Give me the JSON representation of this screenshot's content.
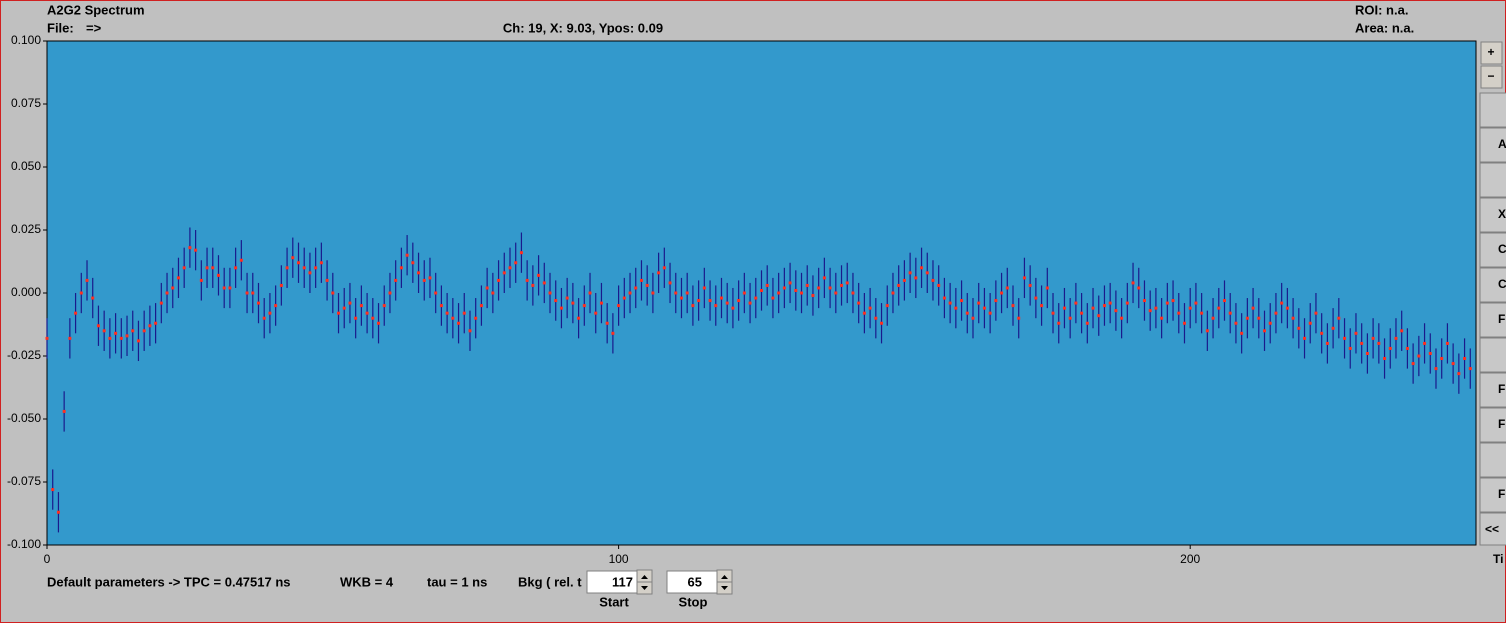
{
  "header": {
    "title": "A2G2 Spectrum",
    "file_label": "File:",
    "file_arrow": "=>",
    "cursor": "Ch: 19, X: 9.03, Ypos: 0.09",
    "roi": "ROI: n.a.",
    "area": "Area: n.a."
  },
  "side": {
    "plus": "+",
    "minus": "−",
    "buttons": [
      "A",
      "X",
      "C",
      "C",
      "F",
      "F",
      "F",
      "F",
      "<<"
    ]
  },
  "footer": {
    "params": "Default parameters  ->  TPC = 0.47517 ns",
    "wkb": "WKB = 4",
    "tau": "tau = 1 ns",
    "bkg": "Bkg ( rel. t",
    "start_value": "117",
    "stop_value": "65",
    "start_label": "Start",
    "stop_label": "Stop"
  },
  "chart_data": {
    "type": "scatter",
    "x_label": "Ti",
    "color": "#ff3020",
    "error_color": "#1a1a8c",
    "background": "#3399cc",
    "error": 0.008,
    "xlim": [
      0,
      250
    ],
    "xticks": [
      0,
      100,
      200
    ],
    "ylim": [
      -0.1,
      0.1
    ],
    "yticks": [
      {
        "value": 0.1,
        "label": "0.100"
      },
      {
        "value": 0.075,
        "label": "0.075"
      },
      {
        "value": 0.05,
        "label": "0.050"
      },
      {
        "value": 0.025,
        "label": "0.025"
      },
      {
        "value": 0,
        "label": "0.000"
      },
      {
        "value": -0.025,
        "label": "-0.025"
      },
      {
        "value": -0.05,
        "label": "-0.050"
      },
      {
        "value": -0.075,
        "label": "-0.075"
      },
      {
        "value": -0.1,
        "label": "-0.100"
      }
    ],
    "x": [
      0,
      1,
      2,
      3,
      4,
      5,
      6,
      7,
      8,
      9,
      10,
      11,
      12,
      13,
      14,
      15,
      16,
      17,
      18,
      19,
      20,
      21,
      22,
      23,
      24,
      25,
      26,
      27,
      28,
      29,
      30,
      31,
      32,
      33,
      34,
      35,
      36,
      37,
      38,
      39,
      40,
      41,
      42,
      43,
      44,
      45,
      46,
      47,
      48,
      49,
      50,
      51,
      52,
      53,
      54,
      55,
      56,
      57,
      58,
      59,
      60,
      61,
      62,
      63,
      64,
      65,
      66,
      67,
      68,
      69,
      70,
      71,
      72,
      73,
      74,
      75,
      76,
      77,
      78,
      79,
      80,
      81,
      82,
      83,
      84,
      85,
      86,
      87,
      88,
      89,
      90,
      91,
      92,
      93,
      94,
      95,
      96,
      97,
      98,
      99,
      100,
      101,
      102,
      103,
      104,
      105,
      106,
      107,
      108,
      109,
      110,
      111,
      112,
      113,
      114,
      115,
      116,
      117,
      118,
      119,
      120,
      121,
      122,
      123,
      124,
      125,
      126,
      127,
      128,
      129,
      130,
      131,
      132,
      133,
      134,
      135,
      136,
      137,
      138,
      139,
      140,
      141,
      142,
      143,
      144,
      145,
      146,
      147,
      148,
      149,
      150,
      151,
      152,
      153,
      154,
      155,
      156,
      157,
      158,
      159,
      160,
      161,
      162,
      163,
      164,
      165,
      166,
      167,
      168,
      169,
      170,
      171,
      172,
      173,
      174,
      175,
      176,
      177,
      178,
      179,
      180,
      181,
      182,
      183,
      184,
      185,
      186,
      187,
      188,
      189,
      190,
      191,
      192,
      193,
      194,
      195,
      196,
      197,
      198,
      199,
      200,
      201,
      202,
      203,
      204,
      205,
      206,
      207,
      208,
      209,
      210,
      211,
      212,
      213,
      214,
      215,
      216,
      217,
      218,
      219,
      220,
      221,
      222,
      223,
      224,
      225,
      226,
      227,
      228,
      229,
      230,
      231,
      232,
      233,
      234,
      235,
      236,
      237,
      238,
      239,
      240,
      241,
      242,
      243,
      244,
      245,
      246,
      247,
      248,
      249
    ],
    "values": [
      -0.018,
      -0.078,
      -0.087,
      -0.047,
      -0.018,
      -0.008,
      0,
      0.005,
      -0.002,
      -0.013,
      -0.015,
      -0.018,
      -0.016,
      -0.018,
      -0.017,
      -0.015,
      -0.019,
      -0.015,
      -0.013,
      -0.012,
      -0.004,
      0,
      0.002,
      0.006,
      0.01,
      0.018,
      0.017,
      0.005,
      0.01,
      0.01,
      0.007,
      0.002,
      0.002,
      0.01,
      0.013,
      0,
      0,
      -0.004,
      -0.01,
      -0.008,
      -0.005,
      0.003,
      0.01,
      0.014,
      0.012,
      0.01,
      0.008,
      0.01,
      0.012,
      0.005,
      0,
      -0.008,
      -0.006,
      -0.004,
      -0.01,
      -0.005,
      -0.008,
      -0.01,
      -0.012,
      -0.005,
      0,
      0.005,
      0.01,
      0.015,
      0.012,
      0.008,
      0.005,
      0.006,
      0,
      -0.005,
      -0.008,
      -0.01,
      -0.012,
      -0.008,
      -0.015,
      -0.01,
      -0.005,
      0.002,
      0,
      0.005,
      0.008,
      0.01,
      0.012,
      0.016,
      0.005,
      0.003,
      0.007,
      0.004,
      0,
      -0.003,
      -0.006,
      -0.002,
      -0.004,
      -0.01,
      -0.005,
      0,
      -0.008,
      -0.004,
      -0.012,
      -0.016,
      -0.005,
      -0.002,
      0,
      0.002,
      0.005,
      0.003,
      0,
      0.008,
      0.01,
      0.004,
      0,
      -0.002,
      0,
      -0.005,
      -0.003,
      0.002,
      -0.003,
      -0.005,
      -0.002,
      -0.004,
      -0.006,
      -0.003,
      0,
      -0.004,
      -0.002,
      0.001,
      0.003,
      -0.002,
      0,
      0.002,
      0.004,
      0.001,
      0,
      0.003,
      -0.001,
      0.002,
      0.006,
      0.002,
      0,
      0.003,
      0.004,
      0,
      -0.004,
      -0.008,
      -0.006,
      -0.01,
      -0.012,
      -0.005,
      0,
      0.003,
      0.005,
      0.008,
      0.006,
      0.01,
      0.008,
      0.005,
      0.003,
      -0.002,
      -0.004,
      -0.006,
      -0.003,
      -0.008,
      -0.01,
      -0.004,
      -0.006,
      -0.008,
      -0.003,
      0,
      0.002,
      -0.005,
      -0.01,
      0.006,
      0.003,
      -0.002,
      -0.005,
      0.002,
      -0.008,
      -0.012,
      -0.006,
      -0.01,
      -0.004,
      -0.008,
      -0.012,
      -0.006,
      -0.009,
      -0.005,
      -0.004,
      -0.007,
      -0.01,
      -0.004,
      0.004,
      0.002,
      -0.003,
      -0.007,
      -0.006,
      -0.01,
      -0.004,
      -0.003,
      -0.008,
      -0.012,
      -0.006,
      -0.004,
      -0.008,
      -0.015,
      -0.01,
      -0.006,
      -0.003,
      -0.008,
      -0.012,
      -0.016,
      -0.01,
      -0.006,
      -0.01,
      -0.015,
      -0.012,
      -0.008,
      -0.004,
      -0.006,
      -0.01,
      -0.014,
      -0.018,
      -0.012,
      -0.008,
      -0.016,
      -0.02,
      -0.014,
      -0.01,
      -0.018,
      -0.022,
      -0.016,
      -0.02,
      -0.024,
      -0.018,
      -0.02,
      -0.026,
      -0.022,
      -0.018,
      -0.015,
      -0.022,
      -0.028,
      -0.025,
      -0.02,
      -0.024,
      -0.03,
      -0.026,
      -0.02,
      -0.028,
      -0.032,
      -0.026,
      -0.03
    ]
  }
}
